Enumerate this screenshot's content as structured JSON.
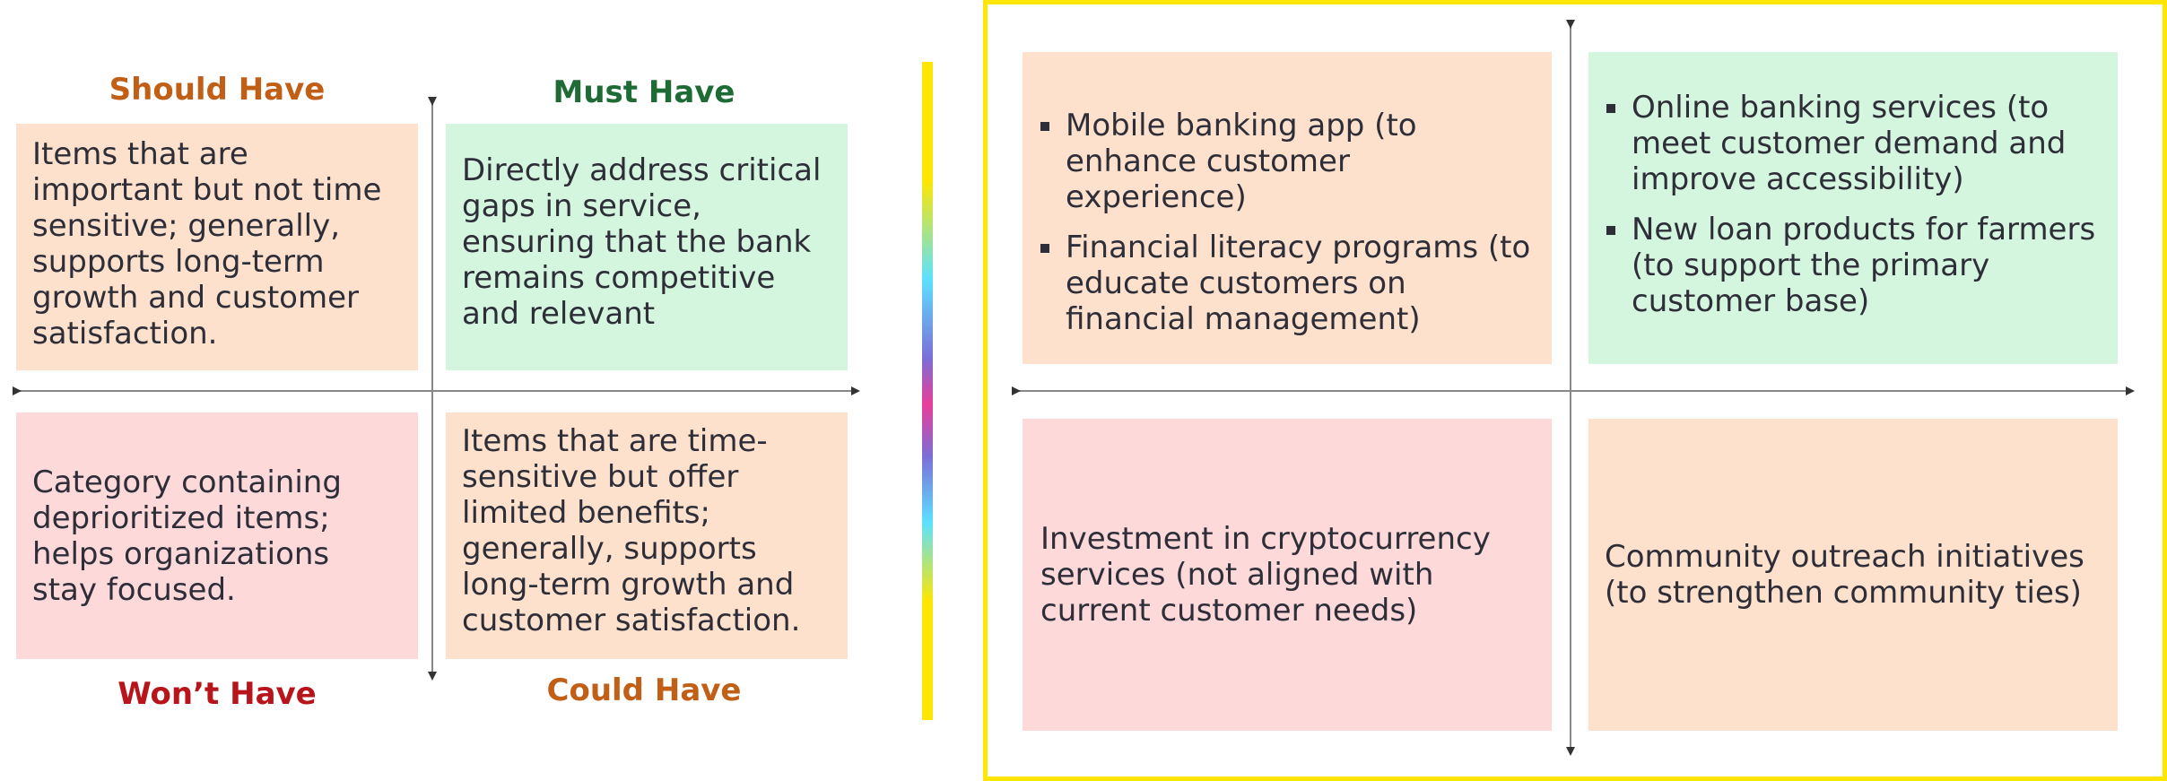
{
  "left_matrix": {
    "headings": {
      "should_have": "Should Have",
      "must_have": "Must Have",
      "wont_have": "Won’t Have",
      "could_have": "Could Have"
    },
    "boxes": {
      "should_have": "Items that are important but not time sensitive; generally, supports long-term growth and customer satisfaction.",
      "must_have": "Directly address critical gaps in service, ensuring that the bank remains competitive and relevant",
      "wont_have": "Category containing deprioritized items; helps organizations stay focused.",
      "could_have": "Items that are time-sensitive but offer limited benefits; generally, supports long-term growth and customer satisfaction."
    }
  },
  "right_matrix": {
    "should_have_items": [
      "Mobile banking app (to enhance customer experience)",
      "Financial literacy programs (to educate customers on financial management)"
    ],
    "must_have_items": [
      "Online banking services (to meet customer demand and improve accessibility)",
      "New loan products for farmers (to support the primary customer base)"
    ],
    "wont_have_text": "Investment in cryptocurrency services (not aligned with current customer needs)",
    "could_have_text": "Community outreach initiatives (to strengthen community ties)"
  },
  "colors": {
    "peach": "#fde1cc",
    "mint": "#d4f5de",
    "pink": "#fdd9da",
    "should_have_heading": "#c15f17",
    "must_have_heading": "#1f6b35",
    "wont_have_heading": "#b8141b",
    "could_have_heading": "#c15f17",
    "frame": "#ffe600",
    "axis": "#555555"
  }
}
